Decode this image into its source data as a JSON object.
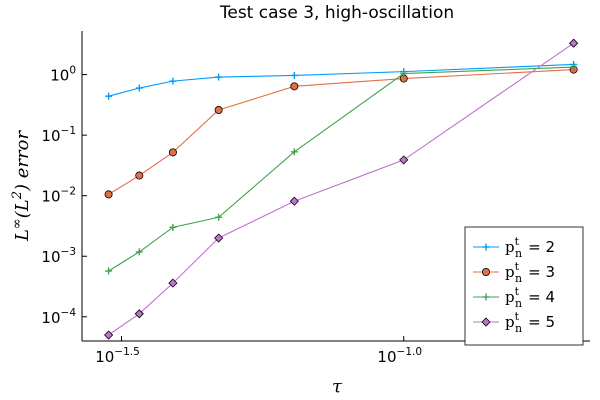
{
  "chart_data": {
    "type": "line",
    "title": "Test case 3, high-oscillation",
    "xlabel": "τ",
    "ylabel": "L∞(L²) error",
    "xscale": "log10",
    "yscale": "log10",
    "xlim_log10": [
      -1.57,
      -0.67
    ],
    "ylim_log10": [
      -4.4,
      0.72
    ],
    "x_ticks": [
      {
        "value_log10": -1.5,
        "base": "10",
        "exp": "−1.5"
      },
      {
        "value_log10": -1.0,
        "base": "10",
        "exp": "−1.0"
      }
    ],
    "y_ticks": [
      {
        "value_log10": 0,
        "base": "10",
        "exp": "0"
      },
      {
        "value_log10": -1,
        "base": "10",
        "exp": "−1"
      },
      {
        "value_log10": -2,
        "base": "10",
        "exp": "−2"
      },
      {
        "value_log10": -3,
        "base": "10",
        "exp": "−3"
      },
      {
        "value_log10": -4,
        "base": "10",
        "exp": "−4"
      }
    ],
    "x": [
      0.03,
      0.034,
      0.039,
      0.047,
      0.064,
      0.1,
      0.2
    ],
    "series": [
      {
        "name": "p_n^t = 2",
        "label_var": "p",
        "label_sup": "t",
        "label_sub": "n",
        "label_val": "= 2",
        "color": "#009AFA",
        "marker": "plus",
        "values": [
          0.44,
          0.6,
          0.78,
          0.91,
          0.97,
          1.12,
          1.47
        ]
      },
      {
        "name": "p_n^t = 3",
        "label_var": "p",
        "label_sup": "t",
        "label_sub": "n",
        "label_val": "= 3",
        "color": "#E36F47",
        "marker": "circle",
        "values": [
          0.0105,
          0.0215,
          0.052,
          0.26,
          0.64,
          0.86,
          1.21
        ]
      },
      {
        "name": "p_n^t = 4",
        "label_var": "p",
        "label_sup": "t",
        "label_sub": "n",
        "label_val": "= 4",
        "color": "#3EA44E",
        "marker": "plus",
        "values": [
          0.00057,
          0.00118,
          0.003,
          0.0044,
          0.053,
          1.04,
          1.33
        ]
      },
      {
        "name": "p_n^t = 5",
        "label_var": "p",
        "label_sup": "t",
        "label_sub": "n",
        "label_val": "= 5",
        "color": "#C271D2",
        "marker": "diamond",
        "values": [
          5e-05,
          0.000112,
          0.00036,
          0.002,
          0.0081,
          0.039,
          3.3
        ]
      }
    ],
    "legend": "bottom-right",
    "grid": false
  }
}
